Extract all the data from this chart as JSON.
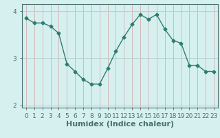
{
  "x": [
    0,
    1,
    2,
    3,
    4,
    5,
    6,
    7,
    8,
    9,
    10,
    11,
    12,
    13,
    14,
    15,
    16,
    17,
    18,
    19,
    20,
    21,
    22,
    23
  ],
  "y": [
    3.85,
    3.75,
    3.75,
    3.68,
    3.53,
    2.88,
    2.72,
    2.55,
    2.45,
    2.45,
    2.78,
    3.15,
    3.45,
    3.72,
    3.93,
    3.83,
    3.93,
    3.62,
    3.38,
    3.32,
    2.85,
    2.85,
    2.72,
    2.72
  ],
  "line_color": "#2e7d6e",
  "marker": "D",
  "marker_size": 2.5,
  "bg_color": "#d6f0f0",
  "vgrid_color": "#d4b8b8",
  "hgrid_color": "#b8d0cc",
  "axis_color": "#4a7070",
  "xlabel": "Humidex (Indice chaleur)",
  "xlabel_fontsize": 8,
  "ylim": [
    1.95,
    4.15
  ],
  "xlim": [
    -0.5,
    23.5
  ],
  "yticks": [
    2,
    3,
    4
  ],
  "xtick_labels": [
    "0",
    "1",
    "2",
    "3",
    "4",
    "5",
    "6",
    "7",
    "8",
    "9",
    "10",
    "11",
    "12",
    "13",
    "14",
    "15",
    "16",
    "17",
    "18",
    "19",
    "20",
    "21",
    "22",
    "23"
  ],
  "tick_fontsize": 6.5
}
